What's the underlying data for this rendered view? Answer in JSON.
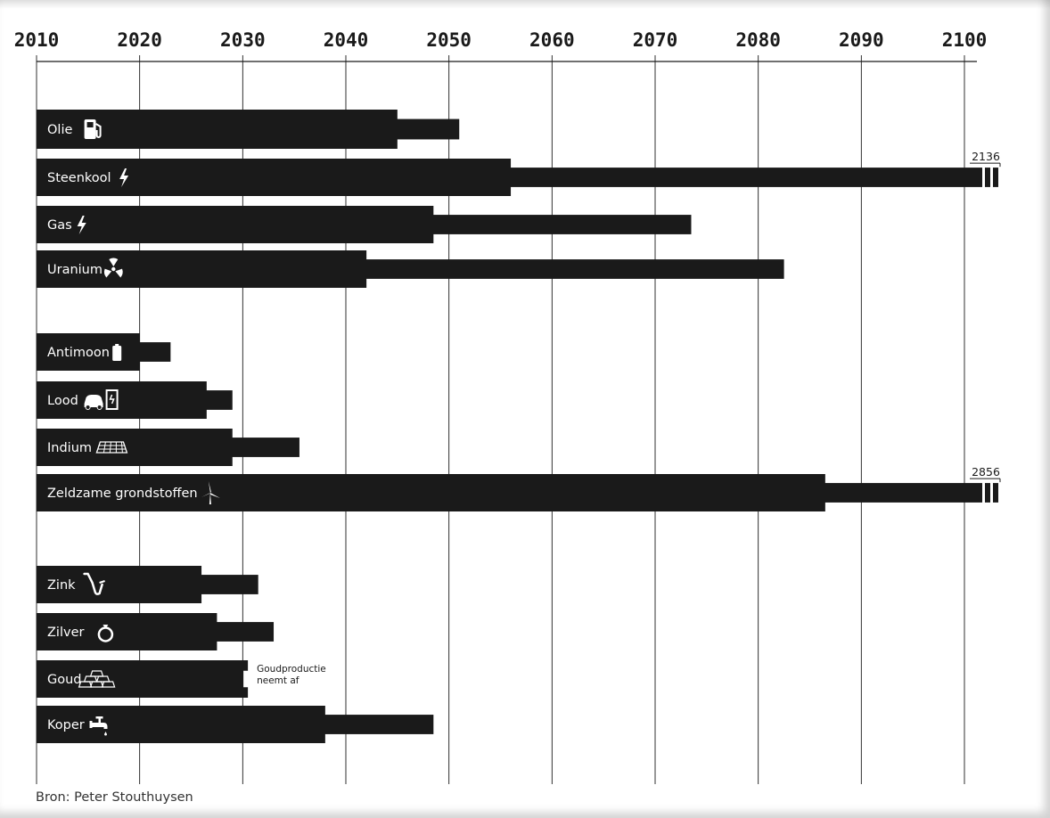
{
  "chart_data": {
    "type": "bar",
    "xlim": [
      2010,
      2100
    ],
    "xticks": [
      2010,
      2020,
      2030,
      2040,
      2050,
      2060,
      2070,
      2080,
      2090,
      2100
    ],
    "grid": true,
    "rows": [
      {
        "label": "Olie",
        "icon": "fuel-pump-icon",
        "value": 2045,
        "extended": 2051
      },
      {
        "label": "Steenkool",
        "icon": "lightning-icon",
        "value": 2056,
        "extended": 2136,
        "extended_label": "2136"
      },
      {
        "label": "Gas",
        "icon": "lightning-icon",
        "value": 2048.5,
        "extended": 2073.5
      },
      {
        "label": "Uranium",
        "icon": "radiation-icon",
        "value": 2042,
        "extended": 2082.5
      },
      {
        "label": "Antimoon",
        "icon": "battery-icon",
        "value": 2020,
        "extended": 2023
      },
      {
        "label": "Lood",
        "icon": "car-charger-icon",
        "value": 2026.5,
        "extended": 2029
      },
      {
        "label": "Indium",
        "icon": "solar-panel-icon",
        "value": 2029,
        "extended": 2035.5
      },
      {
        "label": "Zeldzame grondstoffen",
        "icon": "wind-turbine-icon",
        "value": 2086.5,
        "extended": 2856,
        "extended_label": "2856"
      },
      {
        "label": "Zink",
        "icon": "saxophone-icon",
        "value": 2026,
        "extended": 2031.5
      },
      {
        "label": "Zilver",
        "icon": "ring-icon",
        "value": 2027.5,
        "extended": 2033
      },
      {
        "label": "Goud",
        "icon": "gold-bars-icon",
        "value": 2030.5,
        "extended": null,
        "annotation": [
          "Goudproductie",
          "neemt af"
        ]
      },
      {
        "label": "Koper",
        "icon": "faucet-icon",
        "value": 2038,
        "extended": 2048.5
      }
    ]
  },
  "source": "Bron: Peter Stouthuysen"
}
